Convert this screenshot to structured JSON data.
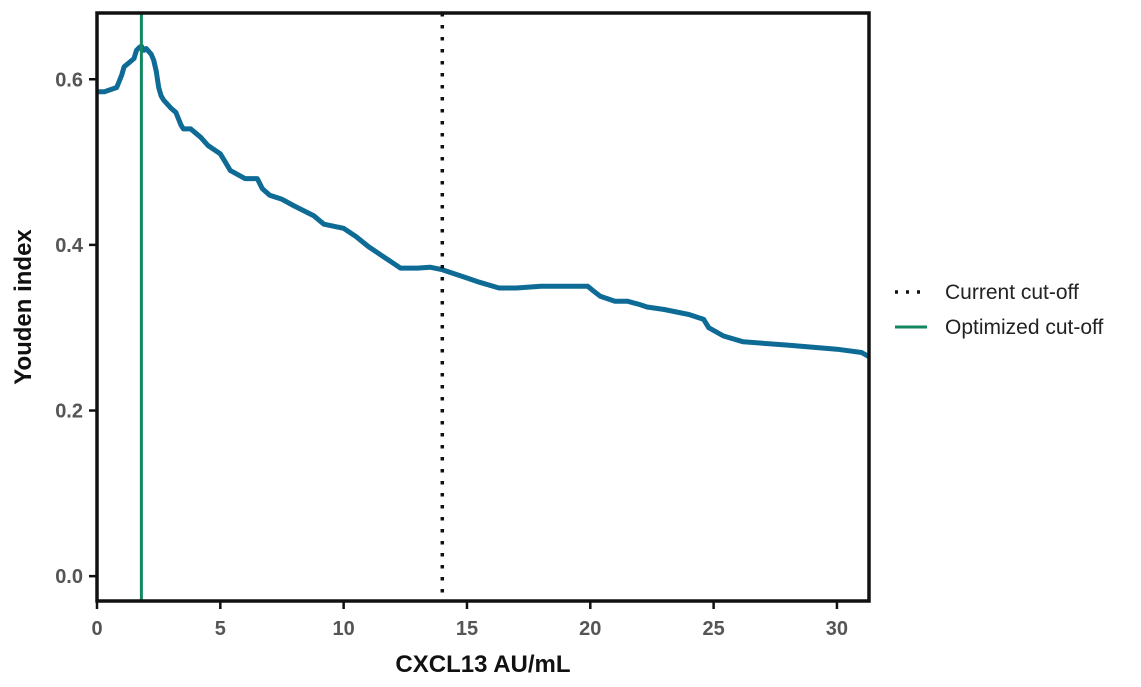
{
  "chart_data": {
    "type": "line",
    "xlabel": "CXCL13 AU/mL",
    "ylabel": "Youden index",
    "xlim": [
      0,
      31.3
    ],
    "ylim": [
      -0.03,
      0.68
    ],
    "xticks": [
      0,
      5,
      10,
      15,
      20,
      25,
      30
    ],
    "yticks": [
      0.0,
      0.2,
      0.4,
      0.6
    ],
    "xtick_labels": [
      "0",
      "5",
      "10",
      "15",
      "20",
      "25",
      "30"
    ],
    "ytick_labels": [
      "0.0",
      "0.2",
      "0.4",
      "0.6"
    ],
    "grid": false,
    "legend_position": "right",
    "series": [
      {
        "color": "#0e6b96",
        "x": [
          0,
          0.3,
          0.8,
          1.0,
          1.1,
          1.3,
          1.5,
          1.6,
          1.7,
          1.8,
          1.9,
          2.0,
          2.2,
          2.3,
          2.4,
          2.5,
          2.6,
          2.7,
          3.0,
          3.2,
          3.4,
          3.5,
          3.8,
          4.2,
          4.5,
          5.0,
          5.2,
          5.4,
          6.0,
          6.5,
          6.7,
          7.0,
          7.5,
          8.0,
          8.8,
          9.2,
          10.0,
          10.5,
          11.0,
          11.5,
          12.0,
          12.3,
          13.0,
          13.5,
          14.0,
          15.0,
          15.5,
          16.3,
          17.0,
          18.0,
          19.0,
          19.9,
          20.1,
          20.4,
          21.0,
          21.5,
          22.0,
          22.3,
          23.0,
          24.0,
          24.6,
          24.8,
          25.4,
          26.2,
          28.0,
          30.0,
          31.0,
          31.3
        ],
        "y": [
          0.585,
          0.585,
          0.59,
          0.605,
          0.615,
          0.62,
          0.625,
          0.635,
          0.638,
          0.64,
          0.635,
          0.637,
          0.63,
          0.623,
          0.61,
          0.59,
          0.58,
          0.575,
          0.565,
          0.56,
          0.545,
          0.54,
          0.54,
          0.53,
          0.52,
          0.51,
          0.5,
          0.49,
          0.48,
          0.48,
          0.468,
          0.46,
          0.455,
          0.447,
          0.435,
          0.425,
          0.42,
          0.41,
          0.398,
          0.388,
          0.378,
          0.372,
          0.372,
          0.373,
          0.37,
          0.36,
          0.355,
          0.348,
          0.348,
          0.35,
          0.35,
          0.35,
          0.345,
          0.338,
          0.332,
          0.332,
          0.328,
          0.325,
          0.322,
          0.316,
          0.31,
          0.3,
          0.29,
          0.283,
          0.279,
          0.274,
          0.27,
          0.265
        ]
      }
    ],
    "vlines": [
      {
        "name": "Current cut-off",
        "x": 14.0,
        "style": "dotted",
        "color": "#111111"
      },
      {
        "name": "Optimized cut-off",
        "x": 1.8,
        "style": "solid",
        "color": "#13875f"
      }
    ],
    "legend": [
      {
        "label": "Current cut-off",
        "style": "dotted",
        "color": "#111111"
      },
      {
        "label": "Optimized cut-off",
        "style": "solid",
        "color": "#13875f"
      }
    ]
  }
}
